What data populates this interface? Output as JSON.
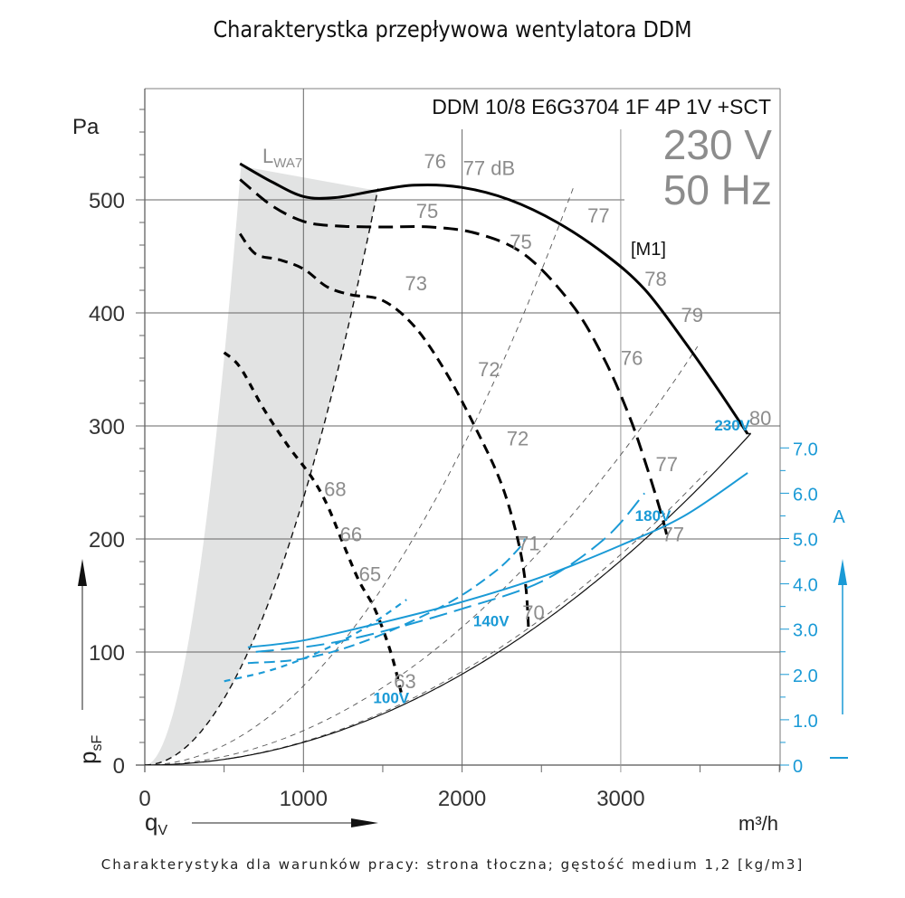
{
  "page": {
    "title": "Charakterystka przepływowa wentylatora DDM",
    "footer": "Charakterystyka dla warunków pracy: strona tłoczna; gęstość medium 1,2 [kg/m3]"
  },
  "chart_data": {
    "type": "line",
    "title": "DDM 10/8 E6G3704 1F 4P 1V +SCT",
    "supply": {
      "voltage": "230 V",
      "frequency": "50 Hz"
    },
    "model_marker": "[M1]",
    "xlabel": "qV",
    "xunit": "m³/h",
    "ylabel": "psF",
    "yunit": "Pa",
    "y2label": "A",
    "xlim": [
      0,
      4000
    ],
    "ylim": [
      0,
      600
    ],
    "y2lim": [
      0,
      7.0
    ],
    "grid": true,
    "xticks": [
      "0",
      "1000",
      "2000",
      "3000"
    ],
    "xtick_values": [
      0,
      1000,
      2000,
      3000
    ],
    "yticks": [
      "0",
      "100",
      "200",
      "300",
      "400",
      "500"
    ],
    "ytick_values": [
      0,
      100,
      200,
      300,
      400,
      500
    ],
    "y2ticks": [
      "0",
      "1.0",
      "2.0",
      "3.0",
      "4.0",
      "5.0",
      "6.0",
      "7.0"
    ],
    "y2tick_values": [
      0,
      1.0,
      2.0,
      3.0,
      4.0,
      5.0,
      6.0,
      7.0
    ],
    "colors": {
      "pressure": "#000000",
      "current": "#1a9ad6",
      "sound_label": "#8c8c8c",
      "unstable_zone": "#e2e3e3",
      "grid": "#555555"
    },
    "unstable_zone_label": "LWA7",
    "pressure_series": [
      {
        "name": "230V",
        "style": "solid",
        "x": [
          600,
          800,
          1000,
          1200,
          1450,
          1700,
          2000,
          2300,
          2600,
          2900,
          3150,
          3400,
          3600,
          3800
        ],
        "y": [
          532,
          516,
          503,
          502,
          508,
          513,
          511,
          500,
          480,
          452,
          421,
          375,
          335,
          293
        ]
      },
      {
        "name": "180V",
        "style": "dashed",
        "x": [
          600,
          800,
          1000,
          1200,
          1500,
          1800,
          2100,
          2400,
          2700,
          2900,
          3050,
          3150,
          3250,
          3300
        ],
        "y": [
          518,
          495,
          481,
          477,
          476,
          476,
          470,
          451,
          406,
          358,
          310,
          270,
          225,
          198
        ]
      },
      {
        "name": "140V",
        "style": "dashed",
        "x": [
          600,
          700,
          850,
          1000,
          1150,
          1300,
          1500,
          1700,
          1900,
          2100,
          2250,
          2350,
          2400,
          2420
        ],
        "y": [
          470,
          452,
          447,
          439,
          423,
          416,
          411,
          388,
          347,
          294,
          248,
          200,
          160,
          118
        ]
      },
      {
        "name": "100V",
        "style": "dotted",
        "x": [
          500,
          600,
          750,
          900,
          1050,
          1150,
          1250,
          1350,
          1450,
          1550,
          1620
        ],
        "y": [
          365,
          352,
          315,
          283,
          255,
          230,
          196,
          163,
          138,
          100,
          62
        ]
      }
    ],
    "system_curves": [
      {
        "name": "stability-limit",
        "style": "dashed",
        "k": 0.000236
      },
      {
        "name": "system-1",
        "style": "thin-dashed",
        "k": 7e-05
      },
      {
        "name": "system-2",
        "style": "thin-dashed",
        "k": 3.05e-05
      },
      {
        "name": "system-3",
        "style": "thin-dashed",
        "k": 2.07e-05
      },
      {
        "name": "system-min",
        "style": "solid",
        "k": 2.01e-05
      }
    ],
    "current_series": [
      {
        "name": "230V",
        "style": "solid",
        "x": [
          650,
          1000,
          1500,
          2000,
          2500,
          3000,
          3400,
          3800
        ],
        "y": [
          2.6,
          2.75,
          3.15,
          3.6,
          4.15,
          4.85,
          5.5,
          6.45
        ]
      },
      {
        "name": "180V",
        "style": "long-dashed",
        "x": [
          700,
          1100,
          1500,
          2000,
          2500,
          2900,
          3150
        ],
        "y": [
          2.5,
          2.65,
          2.95,
          3.45,
          4.05,
          5.0,
          6.0
        ]
      },
      {
        "name": "140V",
        "style": "dashed",
        "x": [
          650,
          1000,
          1400,
          1900,
          2200,
          2350,
          2400
        ],
        "y": [
          2.25,
          2.35,
          2.75,
          3.55,
          4.25,
          4.75,
          5.0
        ]
      },
      {
        "name": "100V",
        "style": "short-dashed",
        "x": [
          500,
          800,
          1100,
          1400,
          1650
        ],
        "y": [
          1.85,
          2.1,
          2.5,
          3.05,
          3.65
        ]
      }
    ],
    "series_labels": [
      {
        "text": "230V",
        "x": 3590,
        "y": 296
      },
      {
        "text": "180V",
        "x": 3090,
        "y": 216
      },
      {
        "text": "140V",
        "x": 2070,
        "y": 123
      },
      {
        "text": "100V",
        "x": 1440,
        "y": 55
      }
    ],
    "sound_levels": [
      {
        "text": "76",
        "x": 1830,
        "y": 528
      },
      {
        "text": "77 dB",
        "x": 2170,
        "y": 522
      },
      {
        "text": "75",
        "x": 1780,
        "y": 484
      },
      {
        "text": "77",
        "x": 2860,
        "y": 480
      },
      {
        "text": "75",
        "x": 2370,
        "y": 457
      },
      {
        "text": "73",
        "x": 1710,
        "y": 420
      },
      {
        "text": "78",
        "x": 3220,
        "y": 424
      },
      {
        "text": "79",
        "x": 3450,
        "y": 392
      },
      {
        "text": "76",
        "x": 3070,
        "y": 354
      },
      {
        "text": "72",
        "x": 2170,
        "y": 344
      },
      {
        "text": "80",
        "x": 3880,
        "y": 301
      },
      {
        "text": "72",
        "x": 2350,
        "y": 283
      },
      {
        "text": "77",
        "x": 3290,
        "y": 260
      },
      {
        "text": "68",
        "x": 1200,
        "y": 238
      },
      {
        "text": "66",
        "x": 1300,
        "y": 198
      },
      {
        "text": "71",
        "x": 2420,
        "y": 190
      },
      {
        "text": "77",
        "x": 3330,
        "y": 198
      },
      {
        "text": "65",
        "x": 1420,
        "y": 163
      },
      {
        "text": "70",
        "x": 2450,
        "y": 129
      },
      {
        "text": "63",
        "x": 1640,
        "y": 68
      }
    ]
  }
}
